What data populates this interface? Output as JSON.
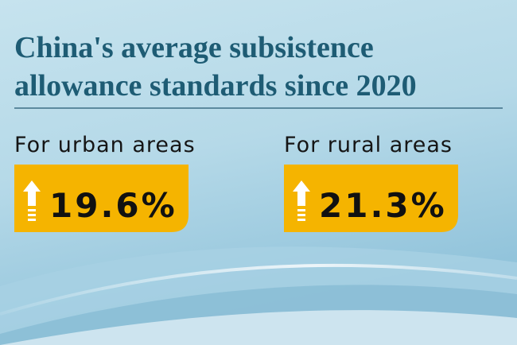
{
  "header": {
    "title_lines": [
      "China's average subsistence",
      "allowance standards since 2020"
    ]
  },
  "stats": [
    {
      "label": "For urban areas",
      "value": "19.6%"
    },
    {
      "label": "For rural areas",
      "value": "21.3%"
    }
  ]
}
